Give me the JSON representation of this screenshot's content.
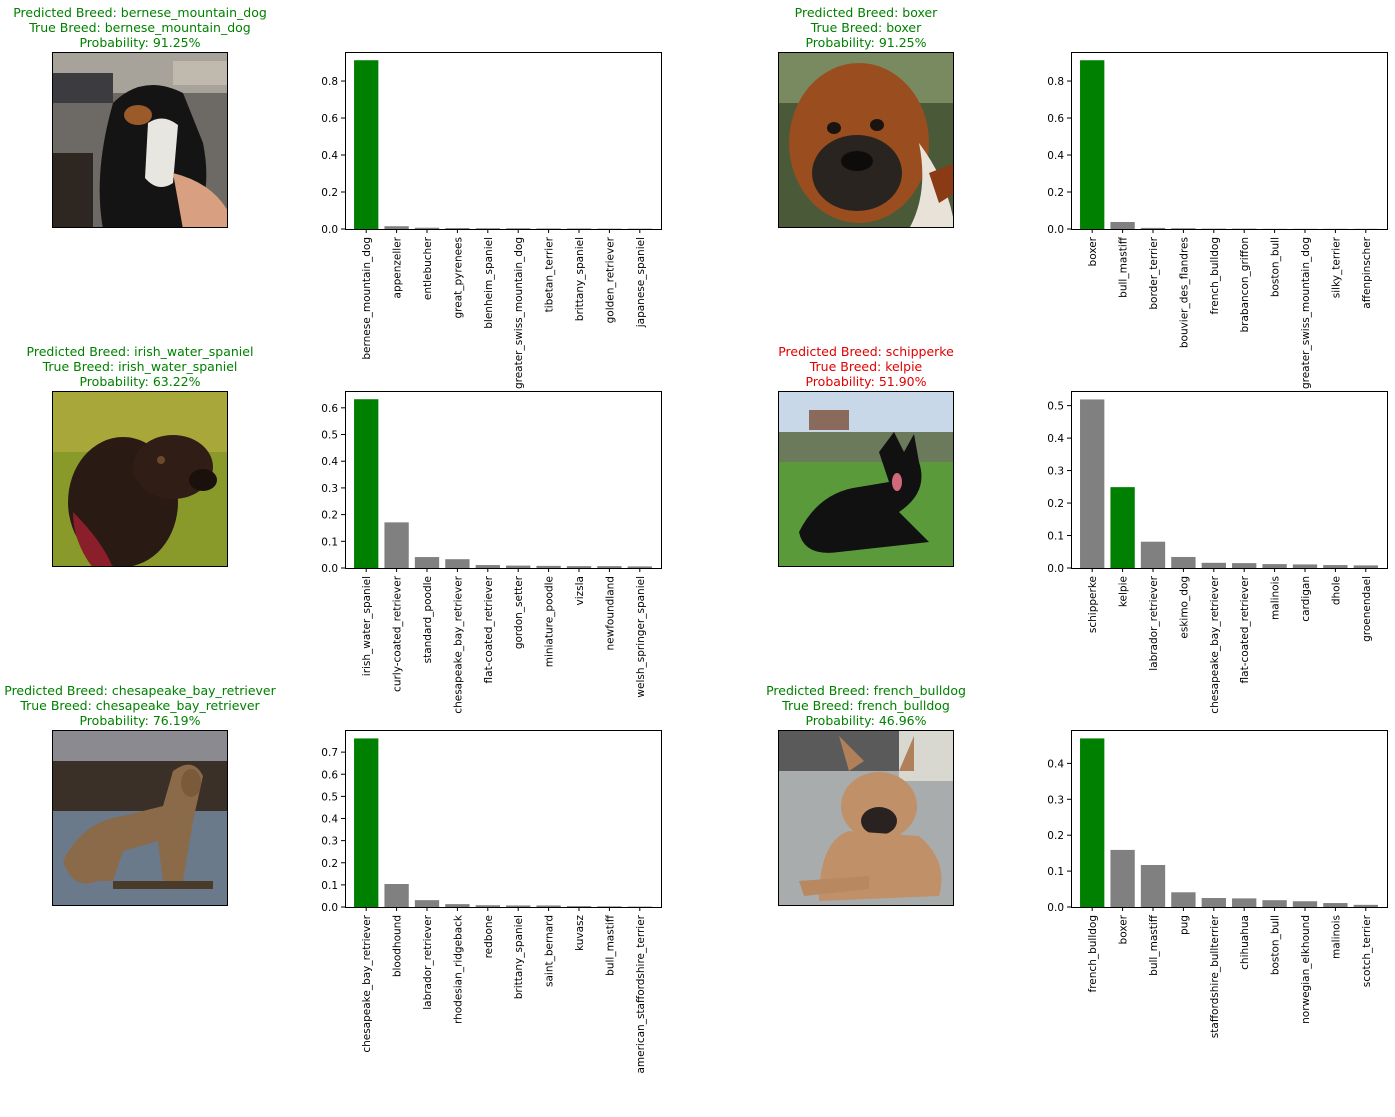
{
  "colors": {
    "correct": "#008000",
    "wrong": "#e00000",
    "bar_true": "#008000",
    "bar_other": "#808080"
  },
  "panels": [
    {
      "predicted": "Predicted Breed: bernese_mountain_dog",
      "true": "True Breed: bernese_mountain_dog",
      "probability": "Probability: 91.25%",
      "correct": true,
      "photo": "photo of a black, white and tan dog on a street",
      "chart_data": {
        "type": "bar",
        "categories": [
          "bernese_mountain_dog",
          "appenzeller",
          "entlebucher",
          "great_pyrenees",
          "blenheim_spaniel",
          "greater_swiss_mountain_dog",
          "tibetan_terrier",
          "brittany_spaniel",
          "golden_retriever",
          "japanese_spaniel"
        ],
        "values": [
          0.9125,
          0.015,
          0.007,
          0.005,
          0.004,
          0.004,
          0.003,
          0.003,
          0.002,
          0.002
        ],
        "true_index": 0,
        "ylim": [
          0,
          0.957
        ],
        "yticks": [
          "0.0",
          "0.2",
          "0.4",
          "0.6",
          "0.8"
        ],
        "ytick_values": [
          0,
          0.2,
          0.4,
          0.6,
          0.8
        ]
      }
    },
    {
      "predicted": "Predicted Breed: boxer",
      "true": "True Breed: boxer",
      "probability": "Probability: 91.25%",
      "correct": true,
      "photo": "close-up photo of a brown boxer dog",
      "chart_data": {
        "type": "bar",
        "categories": [
          "boxer",
          "bull_mastiff",
          "border_terrier",
          "bouvier_des_flandres",
          "french_bulldog",
          "brabancon_griffon",
          "boston_bull",
          "greater_swiss_mountain_dog",
          "silky_terrier",
          "affenpinscher"
        ],
        "values": [
          0.9125,
          0.038,
          0.006,
          0.004,
          0.002,
          0.002,
          0.001,
          0.001,
          0.001,
          0.001
        ],
        "true_index": 0,
        "ylim": [
          0,
          0.957
        ],
        "yticks": [
          "0.0",
          "0.2",
          "0.4",
          "0.6",
          "0.8"
        ],
        "ytick_values": [
          0,
          0.2,
          0.4,
          0.6,
          0.8
        ]
      }
    },
    {
      "predicted": "Predicted Breed: irish_water_spaniel",
      "true": "True Breed: irish_water_spaniel",
      "probability": "Probability: 63.22%",
      "correct": true,
      "photo": "photo of a dark curly-coated dog on grass",
      "chart_data": {
        "type": "bar",
        "categories": [
          "irish_water_spaniel",
          "curly-coated_retriever",
          "standard_poodle",
          "chesapeake_bay_retriever",
          "flat-coated_retriever",
          "gordon_setter",
          "miniature_poodle",
          "vizsla",
          "newfoundland",
          "welsh_springer_spaniel"
        ],
        "values": [
          0.6322,
          0.171,
          0.041,
          0.033,
          0.011,
          0.009,
          0.008,
          0.007,
          0.007,
          0.006
        ],
        "true_index": 0,
        "ylim": [
          0,
          0.663
        ],
        "yticks": [
          "0.0",
          "0.1",
          "0.2",
          "0.3",
          "0.4",
          "0.5",
          "0.6"
        ],
        "ytick_values": [
          0,
          0.1,
          0.2,
          0.3,
          0.4,
          0.5,
          0.6
        ]
      }
    },
    {
      "predicted": "Predicted Breed: schipperke",
      "true": "True Breed: kelpie",
      "probability": "Probability: 51.90%",
      "correct": false,
      "photo": "photo of a black dog lying on a lawn",
      "chart_data": {
        "type": "bar",
        "categories": [
          "schipperke",
          "kelpie",
          "labrador_retriever",
          "eskimo_dog",
          "chesapeake_bay_retriever",
          "flat-coated_retriever",
          "malinois",
          "cardigan",
          "dhole",
          "groenendael"
        ],
        "values": [
          0.519,
          0.249,
          0.081,
          0.034,
          0.016,
          0.015,
          0.012,
          0.011,
          0.009,
          0.008
        ],
        "true_index": 1,
        "ylim": [
          0,
          0.545
        ],
        "yticks": [
          "0.0",
          "0.1",
          "0.2",
          "0.3",
          "0.4",
          "0.5"
        ],
        "ytick_values": [
          0,
          0.1,
          0.2,
          0.3,
          0.4,
          0.5
        ]
      }
    },
    {
      "predicted": "Predicted Breed: chesapeake_bay_retriever",
      "true": "True Breed: chesapeake_bay_retriever",
      "probability": "Probability: 76.19%",
      "correct": true,
      "photo": "photo of a brown retriever standing by a lake",
      "chart_data": {
        "type": "bar",
        "categories": [
          "chesapeake_bay_retriever",
          "bloodhound",
          "labrador_retriever",
          "rhodesian_ridgeback",
          "redbone",
          "brittany_spaniel",
          "saint_bernard",
          "kuvasz",
          "bull_mastiff",
          "american_staffordshire_terrier"
        ],
        "values": [
          0.7619,
          0.104,
          0.031,
          0.013,
          0.008,
          0.007,
          0.007,
          0.004,
          0.003,
          0.002
        ],
        "true_index": 0,
        "ylim": [
          0,
          0.8
        ],
        "yticks": [
          "0.0",
          "0.1",
          "0.2",
          "0.3",
          "0.4",
          "0.5",
          "0.6",
          "0.7"
        ],
        "ytick_values": [
          0,
          0.1,
          0.2,
          0.3,
          0.4,
          0.5,
          0.6,
          0.7
        ]
      }
    },
    {
      "predicted": "Predicted Breed: french_bulldog",
      "true": "True Breed: french_bulldog",
      "probability": "Probability: 46.96%",
      "correct": true,
      "photo": "photo of a fawn french bulldog lying on concrete",
      "chart_data": {
        "type": "bar",
        "categories": [
          "french_bulldog",
          "boxer",
          "bull_mastiff",
          "pug",
          "staffordshire_bullterrier",
          "chihuahua",
          "boston_bull",
          "norwegian_elkhound",
          "malinois",
          "scotch_terrier"
        ],
        "values": [
          0.4696,
          0.159,
          0.117,
          0.041,
          0.025,
          0.024,
          0.019,
          0.016,
          0.011,
          0.006
        ],
        "true_index": 0,
        "ylim": [
          0,
          0.493
        ],
        "yticks": [
          "0.0",
          "0.1",
          "0.2",
          "0.3",
          "0.4"
        ],
        "ytick_values": [
          0,
          0.1,
          0.2,
          0.3,
          0.4
        ]
      }
    }
  ]
}
